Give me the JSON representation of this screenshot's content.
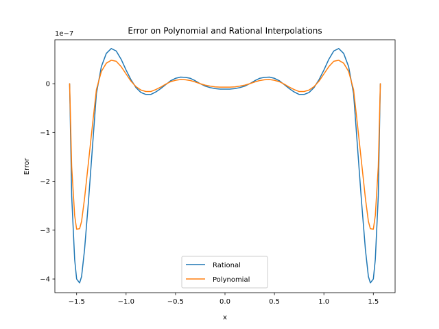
{
  "chart_data": {
    "type": "line",
    "title": "Error on Polynomial and Rational Interpolations",
    "xlabel": "x",
    "ylabel": "Error",
    "y_offset_label": "1e−7",
    "y_scale_factor": 1e-07,
    "xlim": [
      -1.72,
      1.72
    ],
    "ylim": [
      -4.28e-07,
      9e-08
    ],
    "x_ticks": [
      -1.5,
      -1.0,
      -0.5,
      0.0,
      0.5,
      1.0,
      1.5
    ],
    "x_tick_labels": [
      "−1.5",
      "−1.0",
      "−0.5",
      "0.0",
      "0.5",
      "1.0",
      "1.5"
    ],
    "y_ticks": [
      0,
      -1e-07,
      -2e-07,
      -3e-07,
      -4e-07
    ],
    "y_tick_labels": [
      "0",
      "−1",
      "−2",
      "−3",
      "−4"
    ],
    "grid": false,
    "legend_position": "lower center",
    "series": [
      {
        "name": "Rational",
        "color": "#1f77b4",
        "x": [
          -1.5708,
          -1.55,
          -1.52,
          -1.5,
          -1.47,
          -1.45,
          -1.42,
          -1.38,
          -1.34,
          -1.3,
          -1.25,
          -1.2,
          -1.15,
          -1.1,
          -1.05,
          -1.0,
          -0.95,
          -0.9,
          -0.85,
          -0.8,
          -0.75,
          -0.7,
          -0.65,
          -0.6,
          -0.55,
          -0.5,
          -0.45,
          -0.4,
          -0.35,
          -0.3,
          -0.25,
          -0.2,
          -0.15,
          -0.1,
          -0.05,
          0.0,
          0.05,
          0.1,
          0.15,
          0.2,
          0.25,
          0.3,
          0.35,
          0.4,
          0.45,
          0.5,
          0.55,
          0.6,
          0.65,
          0.7,
          0.75,
          0.8,
          0.85,
          0.9,
          0.95,
          1.0,
          1.05,
          1.1,
          1.15,
          1.2,
          1.25,
          1.3,
          1.34,
          1.38,
          1.42,
          1.45,
          1.47,
          1.5,
          1.52,
          1.55,
          1.5708
        ],
        "y": [
          0.0,
          -2.3e-07,
          -3.6e-07,
          -4e-07,
          -4.08e-07,
          -3.95e-07,
          -3.4e-07,
          -2.4e-07,
          -1.3e-07,
          -2e-08,
          3.5e-08,
          6.2e-08,
          7.2e-08,
          6.7e-08,
          5e-08,
          2.8e-08,
          8e-09,
          -8e-09,
          -1.8e-08,
          -2.2e-08,
          -2.2e-08,
          -1.7e-08,
          -1e-08,
          -2e-09,
          6e-09,
          1.1e-08,
          1.35e-08,
          1.3e-08,
          1.1e-08,
          6e-09,
          0.0,
          -5e-09,
          -8e-09,
          -1e-08,
          -1.1e-08,
          -1.1e-08,
          -1.1e-08,
          -1e-08,
          -8e-09,
          -5e-09,
          0.0,
          6e-09,
          1.1e-08,
          1.3e-08,
          1.35e-08,
          1.1e-08,
          6e-09,
          -2e-09,
          -1e-08,
          -1.7e-08,
          -2.2e-08,
          -2.2e-08,
          -1.8e-08,
          -8e-09,
          8e-09,
          2.8e-08,
          5e-08,
          6.7e-08,
          7.2e-08,
          6.2e-08,
          3.5e-08,
          -2e-08,
          -1.3e-07,
          -2.4e-07,
          -3.4e-07,
          -3.95e-07,
          -4.08e-07,
          -4e-07,
          -3.6e-07,
          -2.3e-07,
          0.0
        ]
      },
      {
        "name": "Polynomial",
        "color": "#ff7f0e",
        "x": [
          -1.5708,
          -1.55,
          -1.52,
          -1.5,
          -1.47,
          -1.45,
          -1.42,
          -1.38,
          -1.34,
          -1.3,
          -1.25,
          -1.2,
          -1.15,
          -1.1,
          -1.05,
          -1.0,
          -0.95,
          -0.9,
          -0.85,
          -0.8,
          -0.75,
          -0.7,
          -0.65,
          -0.6,
          -0.55,
          -0.5,
          -0.45,
          -0.4,
          -0.35,
          -0.3,
          -0.25,
          -0.2,
          -0.15,
          -0.1,
          -0.05,
          0.0,
          0.05,
          0.1,
          0.15,
          0.2,
          0.25,
          0.3,
          0.35,
          0.4,
          0.45,
          0.5,
          0.55,
          0.6,
          0.65,
          0.7,
          0.75,
          0.8,
          0.85,
          0.9,
          0.95,
          1.0,
          1.05,
          1.1,
          1.15,
          1.2,
          1.25,
          1.3,
          1.34,
          1.38,
          1.42,
          1.45,
          1.47,
          1.5,
          1.52,
          1.55,
          1.5708
        ],
        "y": [
          0.0,
          -1.7e-07,
          -2.7e-07,
          -2.98e-07,
          -2.97e-07,
          -2.82e-07,
          -2.35e-07,
          -1.6e-07,
          -8.5e-08,
          -1.2e-08,
          2.5e-08,
          4.2e-08,
          4.8e-08,
          4.6e-08,
          3.5e-08,
          2e-08,
          5e-09,
          -6e-09,
          -1.3e-08,
          -1.6e-08,
          -1.6e-08,
          -1.2e-08,
          -7e-09,
          -1e-09,
          4e-09,
          7e-09,
          8.5e-09,
          8e-09,
          6.5e-09,
          3.5e-09,
          0.0,
          -3e-09,
          -5e-09,
          -6.5e-09,
          -7e-09,
          -7e-09,
          -7e-09,
          -6.5e-09,
          -5e-09,
          -3e-09,
          0.0,
          3.5e-09,
          6.5e-09,
          8e-09,
          8.5e-09,
          7e-09,
          4e-09,
          -1e-09,
          -7e-09,
          -1.2e-08,
          -1.6e-08,
          -1.6e-08,
          -1.3e-08,
          -6e-09,
          5e-09,
          2e-08,
          3.5e-08,
          4.6e-08,
          4.8e-08,
          4.2e-08,
          2.5e-08,
          -1.2e-08,
          -8.5e-08,
          -1.6e-07,
          -2.35e-07,
          -2.82e-07,
          -2.97e-07,
          -2.98e-07,
          -2.7e-07,
          -1.7e-07,
          0.0
        ]
      }
    ]
  }
}
